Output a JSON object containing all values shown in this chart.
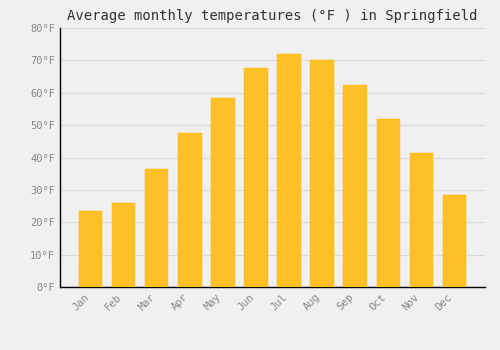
{
  "months": [
    "Jan",
    "Feb",
    "Mar",
    "Apr",
    "May",
    "Jun",
    "Jul",
    "Aug",
    "Sep",
    "Oct",
    "Nov",
    "Dec"
  ],
  "values": [
    23.5,
    26.0,
    36.5,
    47.5,
    58.5,
    67.5,
    72.0,
    70.0,
    62.5,
    52.0,
    41.5,
    28.5
  ],
  "bar_color": "#FFC125",
  "bar_edge_color": "#FFB000",
  "background_color": "#F0F0F0",
  "grid_color": "#D8D8D8",
  "title": "Average monthly temperatures (°F ) in Springfield",
  "title_fontsize": 10,
  "tick_label_color": "#888888",
  "ylim": [
    0,
    80
  ],
  "ytick_step": 10,
  "font_family": "monospace",
  "bar_width": 0.7
}
